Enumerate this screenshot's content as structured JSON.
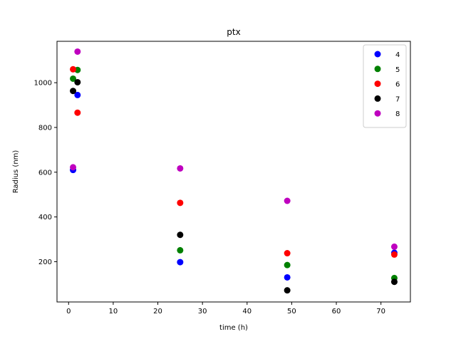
{
  "chart_data": {
    "type": "scatter",
    "title": "ptx",
    "xlabel": "time (h)",
    "ylabel": "Radius (nm)",
    "xlim": [
      -2.6,
      76.6
    ],
    "ylim": [
      20,
      1185
    ],
    "xticks": [
      0,
      10,
      20,
      30,
      40,
      50,
      60,
      70
    ],
    "yticks": [
      200,
      400,
      600,
      800,
      1000
    ],
    "grid": false,
    "legend_position": "top-right",
    "series": [
      {
        "name": "4",
        "color": "#0000ff",
        "points": [
          [
            1,
            610
          ],
          [
            2,
            945
          ],
          [
            25,
            198
          ],
          [
            49,
            130
          ],
          [
            73,
            240
          ]
        ]
      },
      {
        "name": "5",
        "color": "#008000",
        "points": [
          [
            1,
            1018
          ],
          [
            2,
            1057
          ],
          [
            25,
            251
          ],
          [
            49,
            185
          ],
          [
            73,
            127
          ]
        ]
      },
      {
        "name": "6",
        "color": "#ff0000",
        "points": [
          [
            1,
            1060
          ],
          [
            2,
            866
          ],
          [
            25,
            463
          ],
          [
            49,
            238
          ],
          [
            73,
            232
          ]
        ]
      },
      {
        "name": "7",
        "color": "#000000",
        "points": [
          [
            1,
            963
          ],
          [
            2,
            1002
          ],
          [
            25,
            320
          ],
          [
            49,
            72
          ],
          [
            73,
            110
          ]
        ]
      },
      {
        "name": "8",
        "color": "#bf00bf",
        "points": [
          [
            1,
            622
          ],
          [
            2,
            1139
          ],
          [
            25,
            617
          ],
          [
            49,
            472
          ],
          [
            73,
            267
          ]
        ]
      }
    ]
  }
}
